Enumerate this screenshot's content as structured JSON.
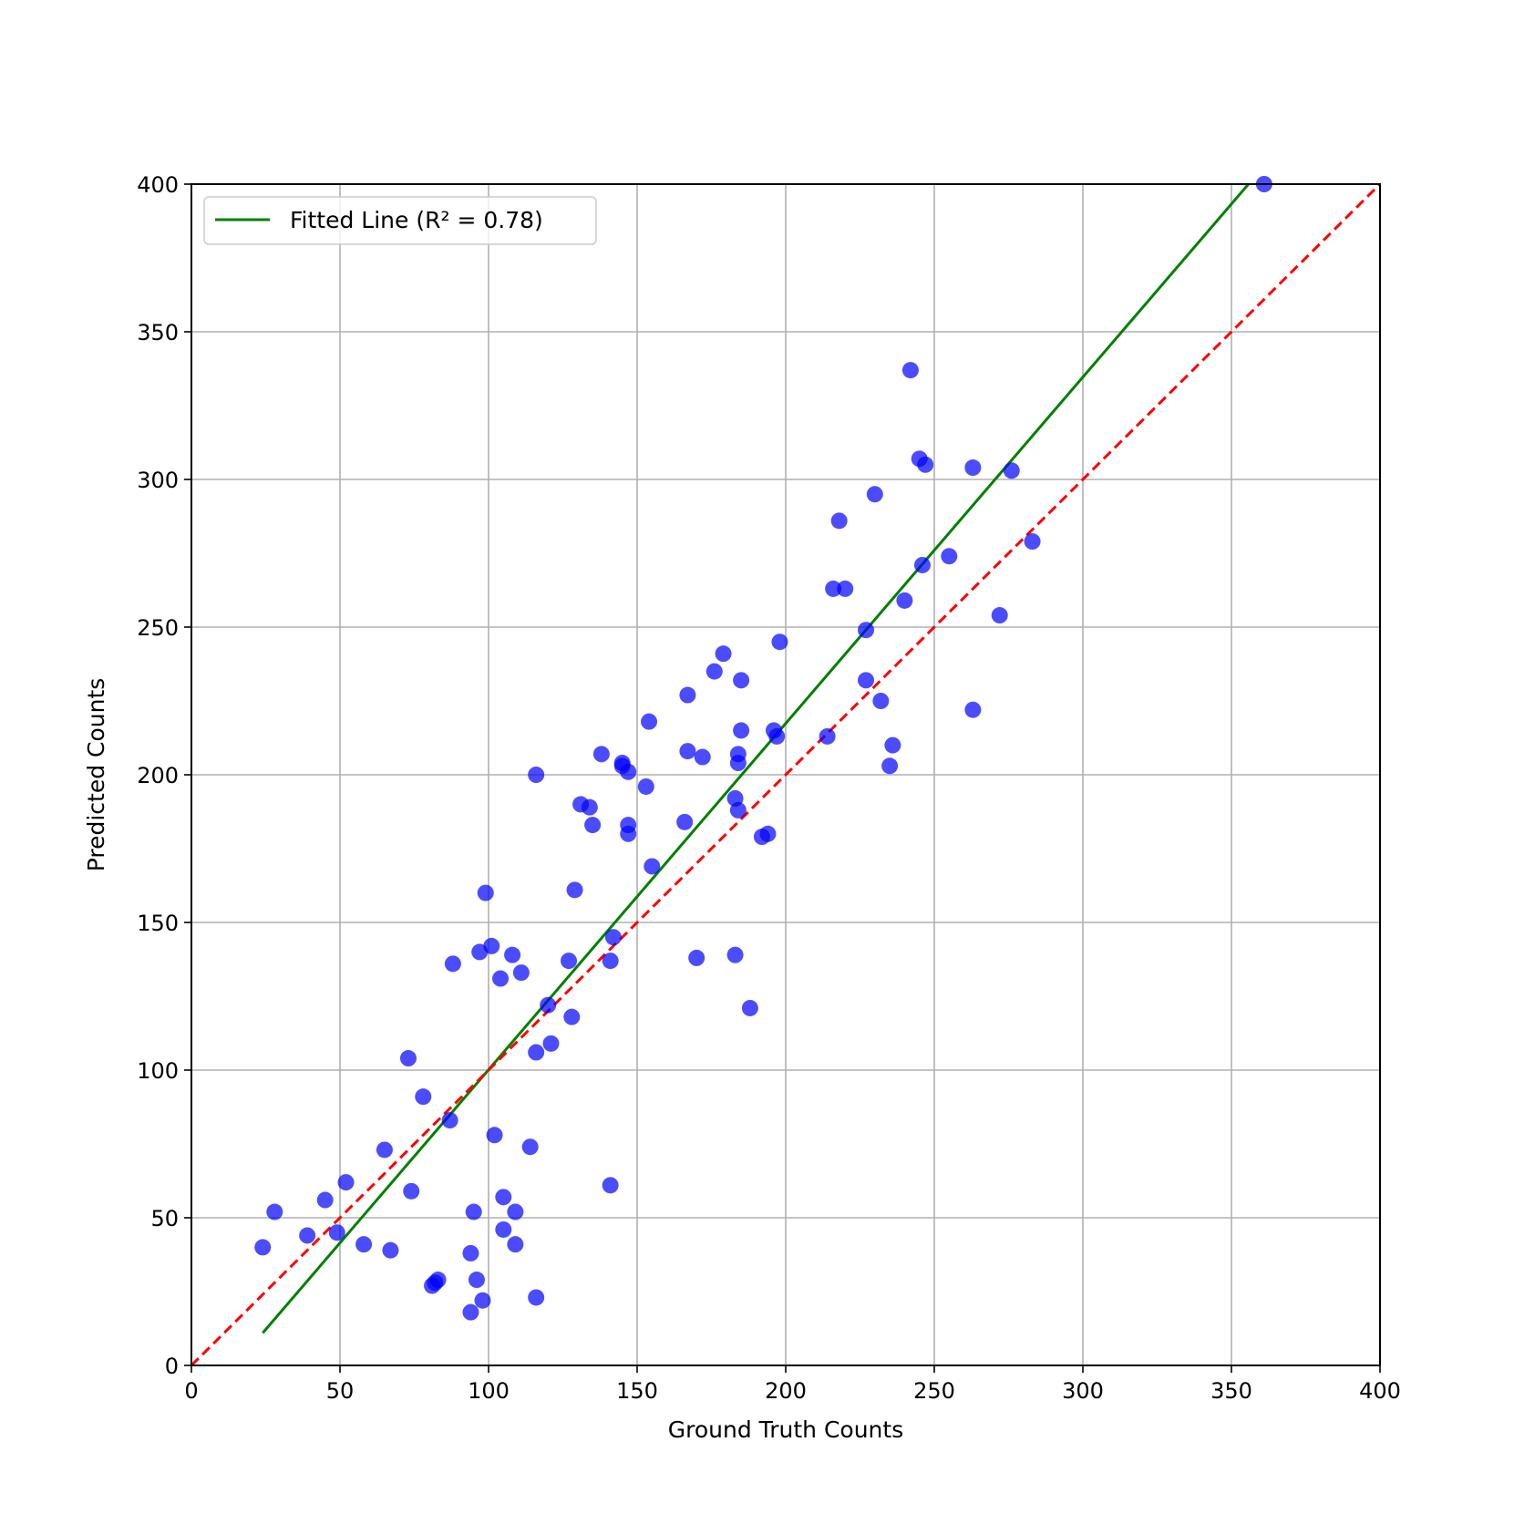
{
  "chart_data": {
    "type": "scatter",
    "title": "",
    "xlabel": "Ground Truth Counts",
    "ylabel": "Predicted Counts",
    "xlim": [
      0,
      400
    ],
    "ylim": [
      0,
      400
    ],
    "xticks": [
      0,
      50,
      100,
      150,
      200,
      250,
      300,
      350,
      400
    ],
    "yticks": [
      0,
      50,
      100,
      150,
      200,
      250,
      300,
      350,
      400
    ],
    "grid": true,
    "legend_position": "top-left",
    "legend": [
      {
        "label": "Fitted Line (R² = 0.78)",
        "color": "#008000",
        "style": "solid"
      }
    ],
    "colors": {
      "points": "#0000ff",
      "fitted_line": "#008000",
      "identity_line": "#ff0000"
    },
    "fitted_line": {
      "x": [
        24,
        360
      ],
      "y": [
        11,
        405
      ]
    },
    "identity_line": {
      "x": [
        0,
        400
      ],
      "y": [
        0,
        400
      ],
      "style": "dashed"
    },
    "points": [
      [
        24,
        40
      ],
      [
        28,
        52
      ],
      [
        39,
        44
      ],
      [
        45,
        56
      ],
      [
        49,
        45
      ],
      [
        52,
        62
      ],
      [
        58,
        41
      ],
      [
        65,
        73
      ],
      [
        67,
        39
      ],
      [
        73,
        104
      ],
      [
        74,
        59
      ],
      [
        78,
        91
      ],
      [
        81,
        27
      ],
      [
        82,
        28
      ],
      [
        83,
        29
      ],
      [
        87,
        83
      ],
      [
        88,
        136
      ],
      [
        94,
        18
      ],
      [
        94,
        38
      ],
      [
        95,
        52
      ],
      [
        96,
        29
      ],
      [
        97,
        140
      ],
      [
        98,
        22
      ],
      [
        99,
        160
      ],
      [
        101,
        142
      ],
      [
        102,
        78
      ],
      [
        104,
        131
      ],
      [
        105,
        46
      ],
      [
        105,
        57
      ],
      [
        108,
        139
      ],
      [
        109,
        41
      ],
      [
        109,
        52
      ],
      [
        111,
        133
      ],
      [
        114,
        74
      ],
      [
        116,
        23
      ],
      [
        116,
        106
      ],
      [
        116,
        200
      ],
      [
        120,
        122
      ],
      [
        121,
        109
      ],
      [
        127,
        137
      ],
      [
        128,
        118
      ],
      [
        129,
        161
      ],
      [
        131,
        190
      ],
      [
        134,
        189
      ],
      [
        135,
        183
      ],
      [
        138,
        207
      ],
      [
        141,
        61
      ],
      [
        141,
        137
      ],
      [
        142,
        145
      ],
      [
        145,
        204
      ],
      [
        145,
        203
      ],
      [
        147,
        201
      ],
      [
        147,
        183
      ],
      [
        147,
        180
      ],
      [
        153,
        196
      ],
      [
        154,
        218
      ],
      [
        155,
        169
      ],
      [
        166,
        184
      ],
      [
        167,
        227
      ],
      [
        167,
        208
      ],
      [
        170,
        138
      ],
      [
        172,
        206
      ],
      [
        176,
        235
      ],
      [
        179,
        241
      ],
      [
        183,
        192
      ],
      [
        183,
        139
      ],
      [
        184,
        207
      ],
      [
        184,
        204
      ],
      [
        184,
        188
      ],
      [
        185,
        232
      ],
      [
        185,
        215
      ],
      [
        188,
        121
      ],
      [
        192,
        179
      ],
      [
        194,
        180
      ],
      [
        196,
        215
      ],
      [
        197,
        213
      ],
      [
        198,
        245
      ],
      [
        214,
        213
      ],
      [
        216,
        263
      ],
      [
        218,
        286
      ],
      [
        220,
        263
      ],
      [
        227,
        249
      ],
      [
        227,
        232
      ],
      [
        230,
        295
      ],
      [
        232,
        225
      ],
      [
        235,
        203
      ],
      [
        236,
        210
      ],
      [
        240,
        259
      ],
      [
        242,
        337
      ],
      [
        245,
        307
      ],
      [
        246,
        271
      ],
      [
        247,
        305
      ],
      [
        255,
        274
      ],
      [
        263,
        304
      ],
      [
        263,
        222
      ],
      [
        272,
        254
      ],
      [
        276,
        303
      ],
      [
        283,
        279
      ],
      [
        361,
        400
      ]
    ]
  }
}
